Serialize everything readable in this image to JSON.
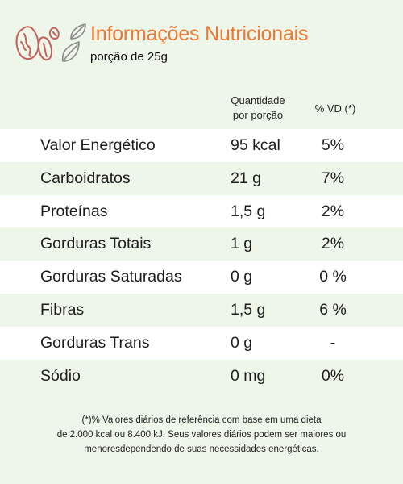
{
  "header": {
    "title": "Informações Nutricionais",
    "subtitle": "porção de 25g"
  },
  "columns": {
    "quantity_line1": "Quantidade",
    "quantity_line2": "por porção",
    "daily_value": "% VD (*)"
  },
  "rows": [
    {
      "name": "Valor Energético",
      "quantity": "95 kcal",
      "dv": "5%"
    },
    {
      "name": "Carboidratos",
      "quantity": "21 g",
      "dv": "7%"
    },
    {
      "name": "Proteínas",
      "quantity": "1,5 g",
      "dv": "2%"
    },
    {
      "name": "Gorduras Totais",
      "quantity": "1 g",
      "dv": "2%"
    },
    {
      "name": "Gorduras Saturadas",
      "quantity": "0 g",
      "dv": "0 %"
    },
    {
      "name": "Fibras",
      "quantity": "1,5 g",
      "dv": "6 %"
    },
    {
      "name": "Gorduras Trans",
      "quantity": "0 g",
      "dv": "-"
    },
    {
      "name": "Sódio",
      "quantity": "0 mg",
      "dv": "0%"
    }
  ],
  "footnote": {
    "line1": "(*)% Valores diários de referência com base em uma dieta",
    "line2": "de 2.000 kcal ou 8.400 kJ. Seus valores diários podem ser maiores ou",
    "line3": "menoresdependendo de suas necessidades energéticas."
  },
  "colors": {
    "background": "#eef5e9",
    "title": "#ec7a34",
    "logo_stroke": "#c2605a",
    "leaf_stroke": "#8a8a8a"
  },
  "icons": [
    "nuts-logo-icon",
    "leaf-icon"
  ]
}
